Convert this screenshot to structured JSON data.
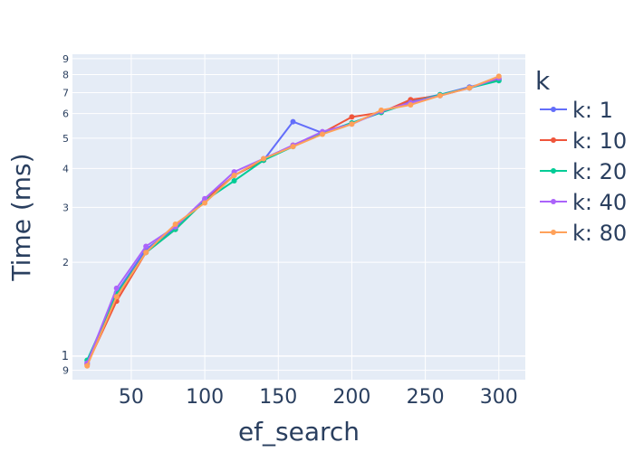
{
  "chart_data": {
    "type": "line",
    "xlabel": "ef_search",
    "ylabel": "Time (ms)",
    "y_scale": "log",
    "xlim": [
      10,
      318
    ],
    "ylim": [
      0.84,
      9.3
    ],
    "x_ticks": [
      50,
      100,
      150,
      200,
      250,
      300
    ],
    "y_major_ticks": [
      1
    ],
    "y_minor_ticks": [
      0.9,
      2,
      3,
      4,
      5,
      6,
      7,
      8,
      9
    ],
    "grid": true,
    "legend": {
      "title": "k",
      "placement": "right"
    },
    "x": [
      20,
      40,
      60,
      80,
      100,
      120,
      140,
      160,
      180,
      200,
      220,
      240,
      260,
      280,
      300
    ],
    "series": [
      {
        "name": "k: 1",
        "color": "#636efa",
        "values": [
          0.95,
          1.6,
          2.2,
          2.58,
          3.17,
          3.8,
          4.25,
          5.65,
          5.2,
          5.6,
          6.05,
          6.6,
          6.9,
          7.3,
          7.7
        ]
      },
      {
        "name": "k: 10",
        "color": "#ef553b",
        "values": [
          0.94,
          1.5,
          2.15,
          2.55,
          3.15,
          3.8,
          4.25,
          4.75,
          5.2,
          5.85,
          6.05,
          6.65,
          6.85,
          7.25,
          7.75
        ]
      },
      {
        "name": "k: 20",
        "color": "#00cc96",
        "values": [
          0.97,
          1.58,
          2.15,
          2.55,
          3.15,
          3.65,
          4.25,
          4.7,
          5.2,
          5.6,
          6.05,
          6.5,
          6.9,
          7.25,
          7.65
        ]
      },
      {
        "name": "k: 40",
        "color": "#ab63fa",
        "values": [
          0.95,
          1.65,
          2.25,
          2.6,
          3.2,
          3.9,
          4.3,
          4.75,
          5.25,
          5.55,
          6.1,
          6.5,
          6.85,
          7.25,
          7.8
        ]
      },
      {
        "name": "k: 80",
        "color": "#ffa15a",
        "values": [
          0.93,
          1.55,
          2.15,
          2.65,
          3.1,
          3.8,
          4.3,
          4.7,
          5.15,
          5.55,
          6.15,
          6.4,
          6.85,
          7.25,
          7.9
        ]
      }
    ]
  },
  "style": {
    "plot_bg": "#e5ecf6",
    "grid_color": "#ffffff",
    "text_color": "#2a3f5f"
  }
}
